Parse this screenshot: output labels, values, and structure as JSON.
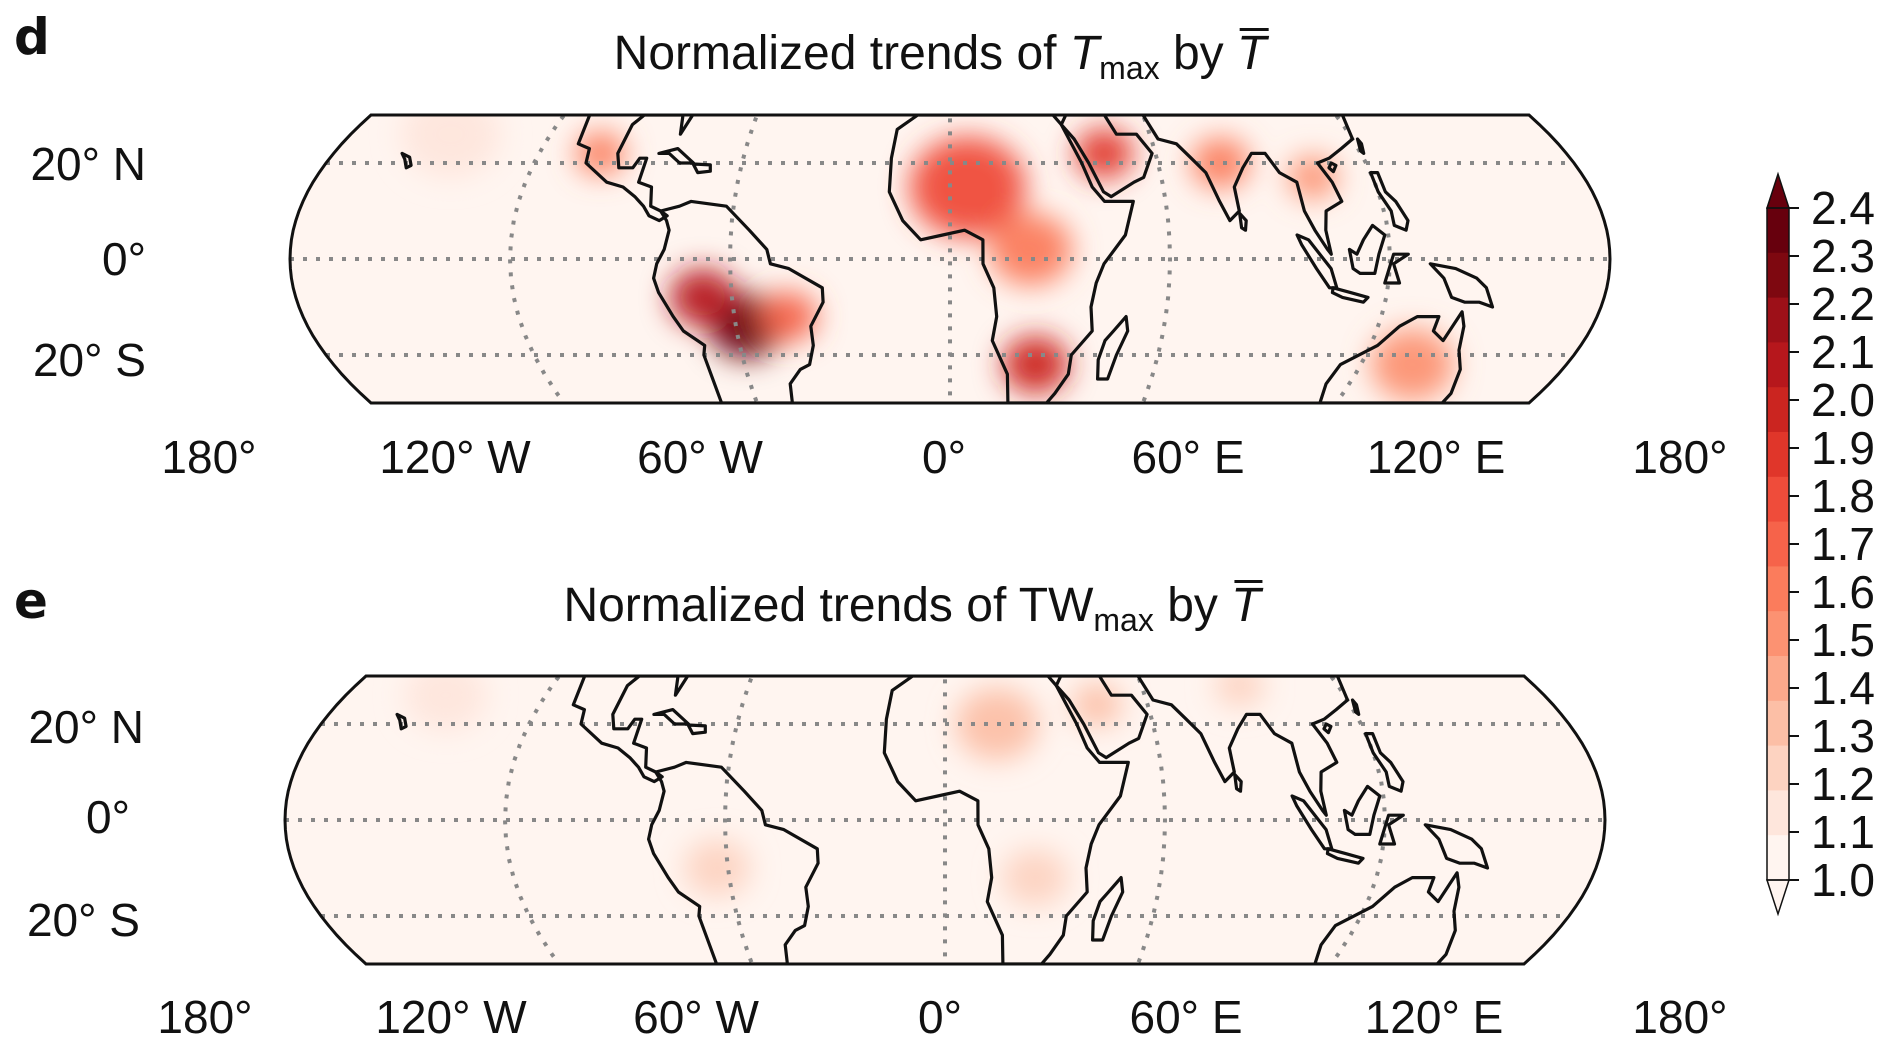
{
  "figure": {
    "panels": [
      {
        "letter": "d",
        "title_prefix": "Normalized trends of ",
        "title_var": "T",
        "title_sub": "max",
        "title_mid": " by ",
        "title_norm": "T"
      },
      {
        "letter": "e",
        "title_prefix": "Normalized trends of ",
        "title_var": "TW",
        "title_sub": "max",
        "title_mid": " by ",
        "title_norm": "T"
      }
    ],
    "lat_labels": [
      "20° N",
      "0°",
      "20° S"
    ],
    "lon_labels": [
      "180°",
      "120° W",
      "60° W",
      "0°",
      "60° E",
      "120° E",
      "180°"
    ]
  },
  "colorbar": {
    "ticks": [
      "2.4",
      "2.3",
      "2.2",
      "2.1",
      "2.0",
      "1.9",
      "1.8",
      "1.7",
      "1.6",
      "1.5",
      "1.4",
      "1.3",
      "1.2",
      "1.1",
      "1.0"
    ],
    "colors": [
      "#fff5f0",
      "#fee6dc",
      "#fdd3c1",
      "#fcbfa6",
      "#fca98c",
      "#fc9272",
      "#fb7c5c",
      "#f6634a",
      "#ef4c3a",
      "#e0362a",
      "#cb2520",
      "#b6171c",
      "#9d1018",
      "#7e0810",
      "#67000d"
    ]
  },
  "chart_data": {
    "type": "heatmap",
    "map_projection": "Robinson (tropical band 30° S – 30° N)",
    "lat_ticks": [
      20,
      0,
      -20
    ],
    "lon_ticks": [
      -180,
      -120,
      -60,
      0,
      60,
      120,
      180
    ],
    "color_scale": {
      "min": 1.0,
      "max": 2.4,
      "step": 0.1,
      "extend": "both"
    },
    "panels": [
      {
        "id": "d",
        "title": "Normalized trends of T_max by T̄",
        "ocean_value": 1.05,
        "hotspots": [
          {
            "region": "central South America",
            "lon": -57,
            "lat": -14,
            "value": 2.35,
            "radius_deg": 9
          },
          {
            "region": "Amazon west",
            "lon": -68,
            "lat": -8,
            "value": 2.1,
            "radius_deg": 8
          },
          {
            "region": "eastern Brazil",
            "lon": -45,
            "lat": -12,
            "value": 1.7,
            "radius_deg": 7
          },
          {
            "region": "Sahel / Sahara",
            "lon": 5,
            "lat": 15,
            "value": 1.8,
            "radius_deg": 14
          },
          {
            "region": "southern Africa",
            "lon": 25,
            "lat": -22,
            "value": 1.95,
            "radius_deg": 8
          },
          {
            "region": "central Africa",
            "lon": 22,
            "lat": 2,
            "value": 1.6,
            "radius_deg": 10
          },
          {
            "region": "Arabian Peninsula",
            "lon": 45,
            "lat": 22,
            "value": 1.85,
            "radius_deg": 7
          },
          {
            "region": "India",
            "lon": 78,
            "lat": 20,
            "value": 1.6,
            "radius_deg": 7
          },
          {
            "region": "Mexico",
            "lon": -102,
            "lat": 22,
            "value": 1.6,
            "radius_deg": 6
          },
          {
            "region": "northern Australia",
            "lon": 135,
            "lat": -22,
            "value": 1.5,
            "radius_deg": 10
          },
          {
            "region": "Indochina",
            "lon": 103,
            "lat": 17,
            "value": 1.5,
            "radius_deg": 6
          },
          {
            "region": "east Pacific (N)",
            "lon": -150,
            "lat": 26,
            "value": 1.15,
            "radius_deg": 12
          }
        ]
      },
      {
        "id": "e",
        "title": "Normalized trends of TW_max by T̄",
        "ocean_value": 1.05,
        "hotspots": [
          {
            "region": "North Africa",
            "lon": 15,
            "lat": 20,
            "value": 1.3,
            "radius_deg": 10
          },
          {
            "region": "Arabian Peninsula",
            "lon": 45,
            "lat": 24,
            "value": 1.3,
            "radius_deg": 6
          },
          {
            "region": "western Amazon",
            "lon": -63,
            "lat": -10,
            "value": 1.25,
            "radius_deg": 8
          },
          {
            "region": "southern Africa",
            "lon": 25,
            "lat": -12,
            "value": 1.2,
            "radius_deg": 8
          },
          {
            "region": "central Asia",
            "lon": 90,
            "lat": 28,
            "value": 1.25,
            "radius_deg": 6
          },
          {
            "region": "east Pacific (N)",
            "lon": -150,
            "lat": 26,
            "value": 1.15,
            "radius_deg": 10
          }
        ]
      }
    ]
  }
}
